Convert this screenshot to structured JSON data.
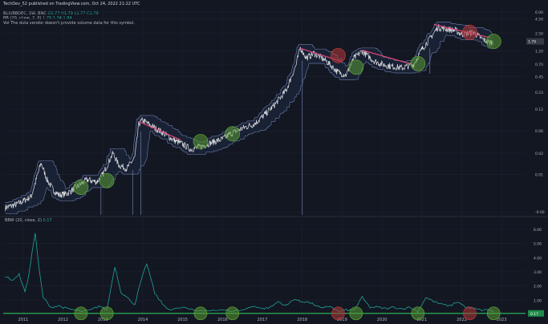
{
  "header": {
    "published": "TechDev_52 published on TradingView.com, Oct 24, 2022 21:22 UTC",
    "symbol_line": "BLX/BBDEC, 1W, BNC",
    "ohlc": "O1.77  H1.79  L1.77  C1.79",
    "bb_label": "BB (20, close, 2, 0)",
    "bb_values": "1.79  1.34  1.84",
    "volume_note": "Vol  The data vendor doesn't provide volume data for this symbol."
  },
  "bbw_header": {
    "label": "BBW (20, close, 2)",
    "value": "0.17"
  },
  "colors": {
    "background": "#131722",
    "grid": "#1e2230",
    "price": "#e8eaed",
    "bands": "#5e6f98",
    "band_fill": "#1b2236",
    "trend": "#e0457b",
    "bbw": "#1fa39a",
    "baseline": "#2bd15e",
    "circle_green": "#5a9b34",
    "circle_red": "#b43838"
  },
  "chart_data": [
    {
      "type": "line",
      "name": "price",
      "scale": "log",
      "x_ticks": [
        "2011",
        "2012",
        "2013",
        "2014",
        "2015",
        "2016",
        "2017",
        "2018",
        "2019",
        "2020",
        "2021",
        "2022",
        "2023"
      ],
      "y_ticks": [
        "-0.00",
        "0.01",
        "0.02",
        "0.06",
        "0.12",
        "0.23",
        "0.45",
        "0.70",
        "1.20",
        "2.50",
        "4.50",
        "6.00"
      ],
      "last_value_label": "1.79",
      "series": [
        {
          "name": "BLX/BBDEC",
          "x": [
            2010.55,
            2010.85,
            2011.2,
            2011.45,
            2011.6,
            2011.75,
            2011.9,
            2012.1,
            2012.35,
            2012.6,
            2012.85,
            2013.0,
            2013.25,
            2013.4,
            2013.6,
            2013.8,
            2013.9,
            2014.0,
            2014.2,
            2014.5,
            2014.8,
            2015.0,
            2015.2,
            2015.5,
            2015.8,
            2016.0,
            2016.2,
            2016.5,
            2016.8,
            2017.0,
            2017.3,
            2017.6,
            2017.85,
            2017.95,
            2018.1,
            2018.3,
            2018.6,
            2018.9,
            2019.1,
            2019.3,
            2019.5,
            2019.8,
            2020.0,
            2020.2,
            2020.5,
            2020.8,
            2021.0,
            2021.2,
            2021.4,
            2021.6,
            2021.85,
            2022.0,
            2022.3,
            2022.5,
            2022.7,
            2022.8
          ],
          "y": [
            0.0019,
            0.0022,
            0.003,
            0.012,
            0.006,
            0.004,
            0.0032,
            0.0034,
            0.0045,
            0.006,
            0.0055,
            0.0075,
            0.018,
            0.011,
            0.0095,
            0.015,
            0.06,
            0.07,
            0.056,
            0.042,
            0.03,
            0.026,
            0.021,
            0.024,
            0.029,
            0.032,
            0.04,
            0.05,
            0.06,
            0.08,
            0.13,
            0.24,
            0.7,
            1.4,
            0.9,
            1.1,
            0.8,
            0.5,
            0.45,
            0.9,
            1.2,
            0.8,
            0.7,
            0.65,
            0.6,
            0.7,
            1.3,
            2.0,
            3.2,
            3.0,
            2.8,
            2.4,
            2.6,
            2.0,
            1.7,
            1.79
          ]
        }
      ],
      "trend_lines": [
        {
          "x": [
            2013.9,
            2014.95
          ],
          "y": [
            0.066,
            0.031
          ]
        },
        {
          "x": [
            2017.95,
            2019.0
          ],
          "y": [
            1.35,
            0.78
          ]
        },
        {
          "x": [
            2019.5,
            2020.75
          ],
          "y": [
            1.25,
            0.7
          ]
        },
        {
          "x": [
            2021.3,
            2022.7
          ],
          "y": [
            3.6,
            2.1
          ]
        }
      ],
      "signals": [
        {
          "x": 2012.45,
          "y": 0.0044,
          "kind": "green"
        },
        {
          "x": 2013.1,
          "y": 0.0058,
          "kind": "green"
        },
        {
          "x": 2015.45,
          "y": 0.029,
          "kind": "green"
        },
        {
          "x": 2016.25,
          "y": 0.04,
          "kind": "green"
        },
        {
          "x": 2018.9,
          "y": 1.0,
          "kind": "red"
        },
        {
          "x": 2019.35,
          "y": 0.62,
          "kind": "green"
        },
        {
          "x": 2020.9,
          "y": 0.72,
          "kind": "green"
        },
        {
          "x": 2022.2,
          "y": 2.6,
          "kind": "red"
        },
        {
          "x": 2022.8,
          "y": 1.79,
          "kind": "green"
        }
      ]
    },
    {
      "type": "line",
      "name": "bbw",
      "y_ticks": [
        "0.00",
        "1.00",
        "2.00",
        "3.00",
        "4.00",
        "5.00",
        "6.00"
      ],
      "ylim": [
        0,
        6
      ],
      "last_value_label": "0.17",
      "threshold": 0.07,
      "series": [
        {
          "name": "BBW",
          "x": [
            2010.55,
            2010.7,
            2010.9,
            2011.05,
            2011.15,
            2011.3,
            2011.4,
            2011.5,
            2011.7,
            2011.9,
            2012.1,
            2012.3,
            2012.5,
            2012.7,
            2012.9,
            2013.1,
            2013.3,
            2013.45,
            2013.6,
            2013.8,
            2013.95,
            2014.1,
            2014.3,
            2014.5,
            2014.7,
            2015.0,
            2015.3,
            2015.6,
            2015.9,
            2016.2,
            2016.5,
            2016.8,
            2017.0,
            2017.2,
            2017.4,
            2017.6,
            2017.8,
            2017.95,
            2018.1,
            2018.3,
            2018.5,
            2018.7,
            2018.9,
            2019.1,
            2019.3,
            2019.5,
            2019.7,
            2019.9,
            2020.1,
            2020.3,
            2020.5,
            2020.7,
            2020.9,
            2021.1,
            2021.3,
            2021.5,
            2021.7,
            2021.9,
            2022.1,
            2022.3,
            2022.5,
            2022.7,
            2022.8
          ],
          "y": [
            2.7,
            2.4,
            2.8,
            1.6,
            2.9,
            5.8,
            3.2,
            1.2,
            0.5,
            0.6,
            0.4,
            0.3,
            0.2,
            0.3,
            0.6,
            0.3,
            3.4,
            1.6,
            1.2,
            0.7,
            2.3,
            3.6,
            1.5,
            0.7,
            0.3,
            0.5,
            0.25,
            0.3,
            0.3,
            0.25,
            0.3,
            0.6,
            0.4,
            0.5,
            0.9,
            0.6,
            1.1,
            0.9,
            0.9,
            0.7,
            0.4,
            0.6,
            0.2,
            0.3,
            0.3,
            1.2,
            0.5,
            0.5,
            0.4,
            0.5,
            0.4,
            0.5,
            0.2,
            1.2,
            0.9,
            0.7,
            0.6,
            0.9,
            0.5,
            0.4,
            0.3,
            0.3,
            0.17
          ]
        }
      ],
      "signals": [
        {
          "x": 2012.45,
          "kind": "green"
        },
        {
          "x": 2013.1,
          "kind": "green"
        },
        {
          "x": 2015.45,
          "kind": "green"
        },
        {
          "x": 2016.25,
          "kind": "green"
        },
        {
          "x": 2018.9,
          "kind": "red"
        },
        {
          "x": 2019.35,
          "kind": "green"
        },
        {
          "x": 2020.9,
          "kind": "green"
        },
        {
          "x": 2022.2,
          "kind": "red"
        },
        {
          "x": 2022.8,
          "kind": "green"
        }
      ]
    }
  ]
}
